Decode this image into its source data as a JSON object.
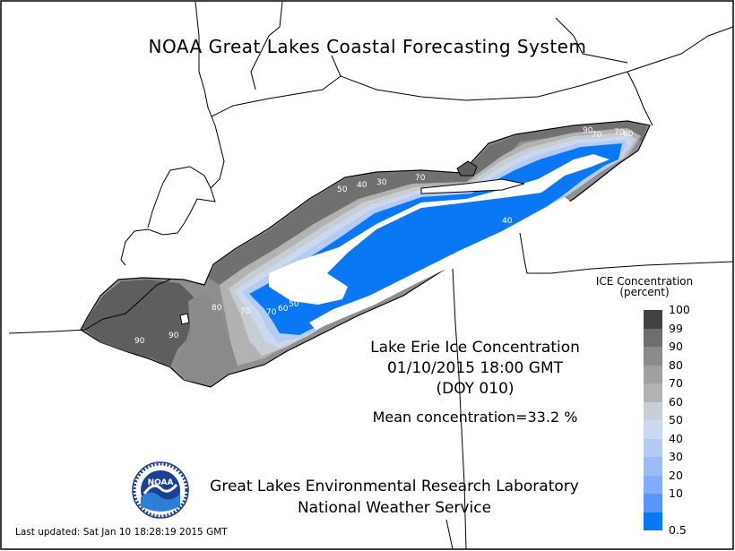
{
  "header": {
    "system_title": "NOAA Great Lakes Coastal Forecasting System"
  },
  "plot": {
    "title_line1": "Lake Erie Ice Concentration",
    "title_line2": "01/10/2015 18:00 GMT",
    "title_line3": "(DOY 010)",
    "mean_concentration": "Mean concentration=33.2 %"
  },
  "legend": {
    "title_line1": "ICE Concentration",
    "title_line2": "(percent)",
    "levels": [
      "100",
      "99",
      "90",
      "80",
      "70",
      "60",
      "50",
      "40",
      "30",
      "20",
      "10",
      "0.5"
    ],
    "colors": [
      "#424242",
      "#6e6e6e",
      "#8a8a8a",
      "#a0a0a0",
      "#b2b2b2",
      "#c7ced7",
      "#cad8f2",
      "#b5cbf4",
      "#9dbcf6",
      "#84acf8",
      "#5a95fa",
      "#0a78f5"
    ]
  },
  "contour_labels": [
    "90",
    "90",
    "80",
    "70",
    "70",
    "60",
    "50",
    "50",
    "40",
    "30",
    "70",
    "40",
    "50",
    "50",
    "90",
    "70",
    "70",
    "80"
  ],
  "footer": {
    "lab_line1": "Great Lakes Environmental Research Laboratory",
    "lab_line2": "National Weather Service",
    "last_updated": "Last updated: Sat Jan 10 18:28:19 2015 GMT"
  },
  "logo": {
    "text": "NOAA",
    "icon": "noaa-logo-icon"
  },
  "colors": {
    "open_water": "#ffffff",
    "land": "#ffffff",
    "border": "#000000"
  }
}
